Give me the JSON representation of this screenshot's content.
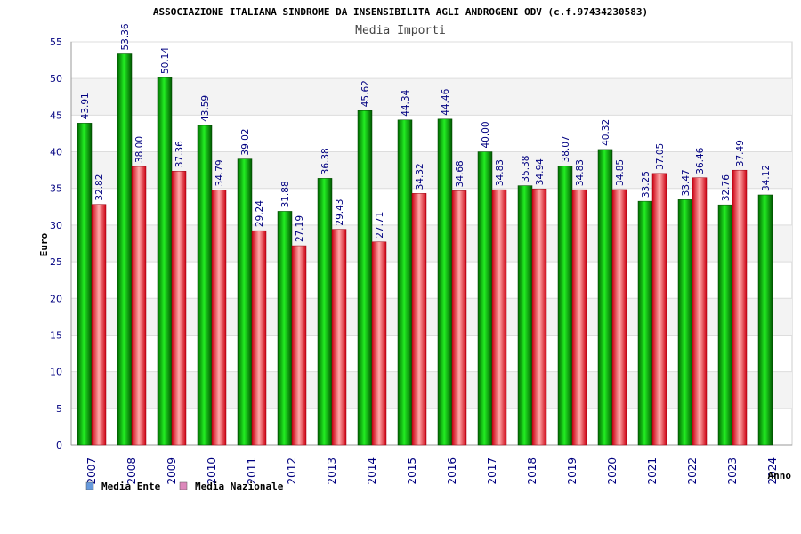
{
  "chart_data": {
    "type": "bar",
    "title": "ASSOCIAZIONE ITALIANA SINDROME DA INSENSIBILITA AGLI ANDROGENI ODV (c.f.97434230583)",
    "subtitle": "Media Importi",
    "xlabel": "Anno",
    "ylabel": "Euro",
    "ylim": [
      0,
      55
    ],
    "yticks": [
      "0",
      "5",
      "10",
      "15",
      "20",
      "25",
      "30",
      "35",
      "40",
      "45",
      "50",
      "55"
    ],
    "categories": [
      "2007",
      "2008",
      "2009",
      "2010",
      "2011",
      "2012",
      "2013",
      "2014",
      "2015",
      "2016",
      "2017",
      "2018",
      "2019",
      "2020",
      "2021",
      "2022",
      "2023",
      "2024"
    ],
    "series": [
      {
        "name": "Media Ente",
        "color": "#00aa00",
        "values": [
          43.91,
          53.36,
          50.14,
          43.59,
          39.02,
          31.88,
          36.38,
          45.62,
          44.34,
          44.46,
          40.0,
          35.38,
          38.07,
          40.32,
          33.25,
          33.47,
          32.76,
          34.12
        ],
        "labels": [
          "43.91",
          "53.36",
          "50.14",
          "43.59",
          "39.02",
          "31.88",
          "36.38",
          "45.62",
          "44.34",
          "44.46",
          "40.00",
          "35.38",
          "38.07",
          "40.32",
          "33.25",
          "33.47",
          "32.76",
          "34.12"
        ]
      },
      {
        "name": "Media Nazionale",
        "color": "#dd2233",
        "values": [
          32.82,
          38.0,
          37.36,
          34.79,
          29.24,
          27.19,
          29.43,
          27.71,
          34.32,
          34.68,
          34.83,
          34.94,
          34.83,
          34.85,
          37.05,
          36.46,
          37.49,
          null
        ],
        "labels": [
          "32.82",
          "38.00",
          "37.36",
          "34.79",
          "29.24",
          "27.19",
          "29.43",
          "27.71",
          "34.32",
          "34.68",
          "34.83",
          "34.94",
          "34.83",
          "34.85",
          "37.05",
          "36.46",
          "37.49",
          ""
        ]
      }
    ],
    "legend": {
      "placement": "bottom-left",
      "items": [
        {
          "label": "Media Ente",
          "color": "#6699dd"
        },
        {
          "label": "Media Nazionale",
          "color": "#dd88bb"
        }
      ]
    },
    "grid": true
  }
}
